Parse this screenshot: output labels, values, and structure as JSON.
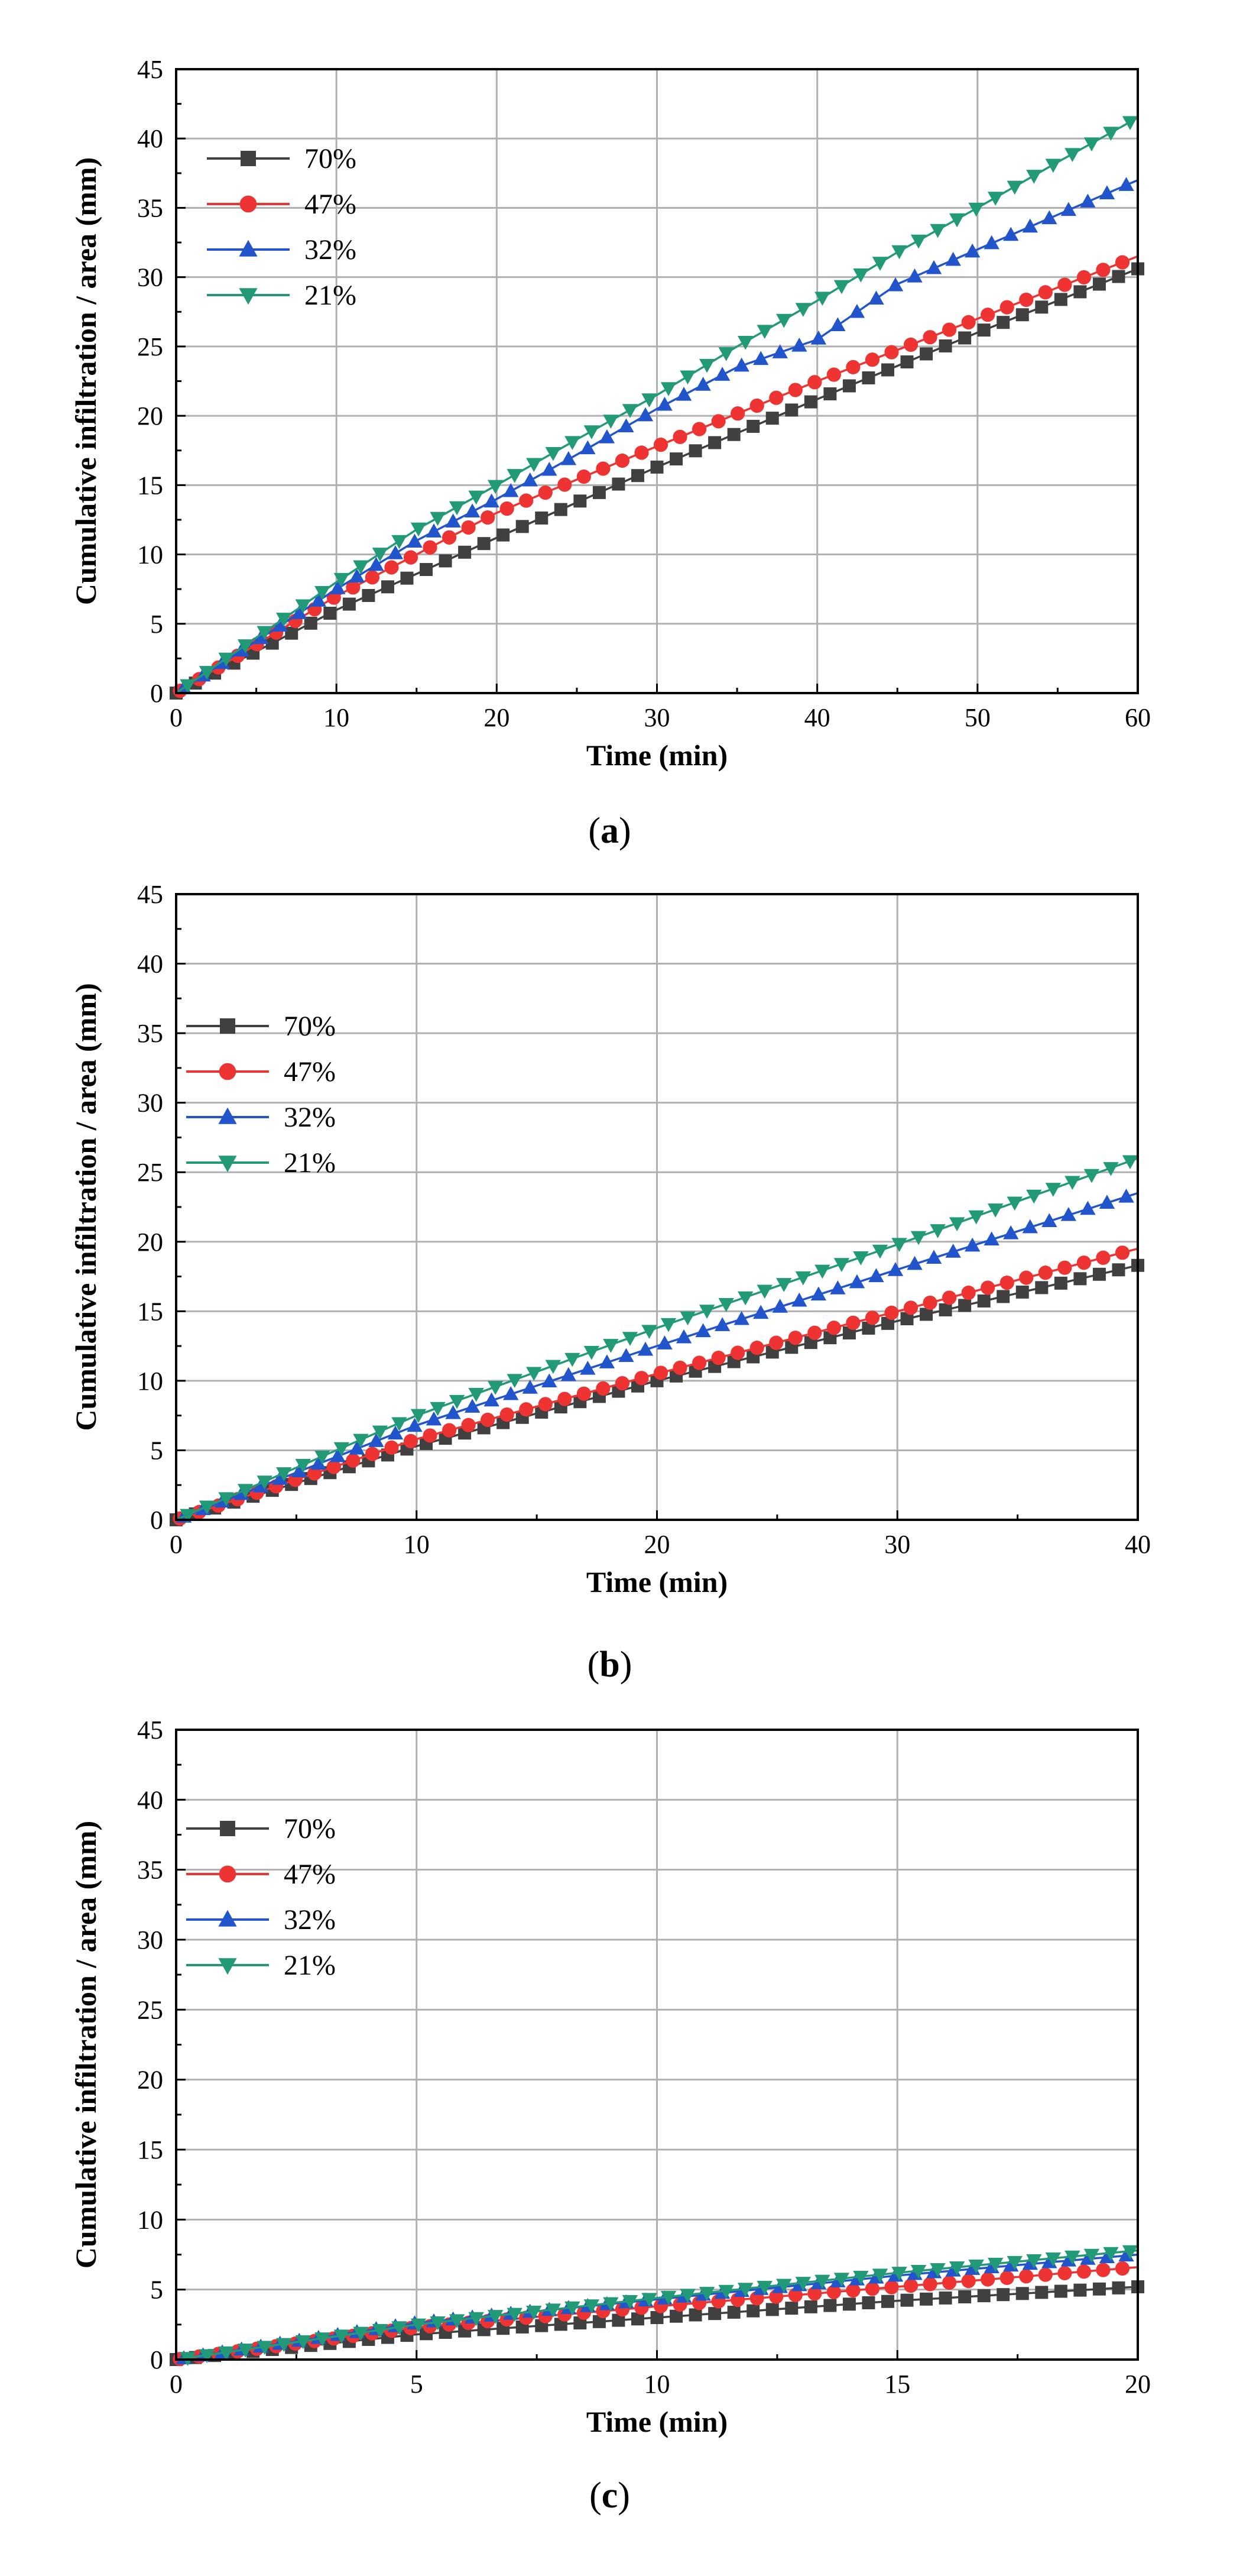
{
  "chart_data": [
    {
      "type": "line",
      "panel_label": "a",
      "caption_open": "(",
      "caption_close": ")",
      "xlabel": "Time (min)",
      "ylabel": "Cumulative infiltration / area (mm)",
      "xlim": [
        0,
        60
      ],
      "ylim": [
        0,
        45
      ],
      "xticks": [
        0,
        10,
        20,
        30,
        40,
        50,
        60
      ],
      "yticks": [
        0,
        5,
        10,
        15,
        20,
        25,
        30,
        35,
        40,
        45
      ],
      "grid": true,
      "legend_position": "top-left",
      "series": [
        {
          "name": "70%",
          "color": "#404040",
          "marker": "square",
          "x": [
            0,
            10,
            20,
            30,
            40,
            50,
            60
          ],
          "values": [
            0,
            6.0,
            11.2,
            16.3,
            21.2,
            26.0,
            30.6
          ]
        },
        {
          "name": "47%",
          "color": "#ee3333",
          "marker": "circle",
          "x": [
            0,
            10,
            20,
            30,
            40,
            50,
            60
          ],
          "values": [
            0,
            7.0,
            13.0,
            17.8,
            22.5,
            27.0,
            31.5
          ]
        },
        {
          "name": "32%",
          "color": "#2255cc",
          "marker": "triangle-up",
          "x": [
            0,
            10,
            15,
            20,
            25,
            30,
            35,
            40,
            45,
            50,
            55,
            60
          ],
          "values": [
            0,
            7.5,
            11.0,
            14.0,
            17.2,
            20.5,
            23.5,
            25.5,
            29.5,
            32.0,
            34.5,
            37.0
          ]
        },
        {
          "name": "21%",
          "color": "#229977",
          "marker": "triangle-down",
          "x": [
            0,
            10,
            15,
            20,
            25,
            30,
            35,
            40,
            45,
            50,
            55,
            60
          ],
          "values": [
            0,
            8.0,
            11.8,
            15.0,
            18.3,
            21.5,
            25.0,
            28.3,
            31.8,
            35.0,
            38.3,
            41.5
          ]
        }
      ]
    },
    {
      "type": "line",
      "panel_label": "b",
      "caption_open": "(",
      "caption_close": ")",
      "xlabel": "Time (min)",
      "ylabel": "Cumulative infiltration / area (mm)",
      "xlim": [
        0,
        40
      ],
      "ylim": [
        0,
        45
      ],
      "xticks": [
        0,
        10,
        20,
        30,
        40
      ],
      "yticks": [
        0,
        5,
        10,
        15,
        20,
        25,
        30,
        35,
        40,
        45
      ],
      "grid": true,
      "legend_position": "top-left",
      "series": [
        {
          "name": "70%",
          "color": "#404040",
          "marker": "square",
          "x": [
            0,
            10,
            20,
            30,
            40
          ],
          "values": [
            0,
            5.3,
            10.0,
            14.3,
            18.3
          ]
        },
        {
          "name": "47%",
          "color": "#ee3333",
          "marker": "circle",
          "x": [
            0,
            10,
            20,
            30,
            40
          ],
          "values": [
            0,
            5.8,
            10.5,
            15.0,
            19.5
          ]
        },
        {
          "name": "32%",
          "color": "#2255cc",
          "marker": "triangle-up",
          "x": [
            0,
            10,
            20,
            30,
            40
          ],
          "values": [
            0,
            6.8,
            12.5,
            18.0,
            23.5
          ]
        },
        {
          "name": "21%",
          "color": "#229977",
          "marker": "triangle-down",
          "x": [
            0,
            10,
            20,
            30,
            40
          ],
          "values": [
            0,
            7.5,
            13.8,
            19.8,
            26.0
          ]
        }
      ]
    },
    {
      "type": "line",
      "panel_label": "c",
      "caption_open": "(",
      "caption_close": ")",
      "xlabel": "Time (min)",
      "ylabel": "Cumulative infiltration / area (mm)",
      "xlim": [
        0,
        20
      ],
      "ylim": [
        0,
        45
      ],
      "xticks": [
        0,
        5,
        10,
        15,
        20
      ],
      "yticks": [
        0,
        5,
        10,
        15,
        20,
        25,
        30,
        35,
        40,
        45
      ],
      "grid": true,
      "legend_position": "top-left",
      "series": [
        {
          "name": "70%",
          "color": "#404040",
          "marker": "square",
          "x": [
            0,
            5,
            10,
            15,
            20
          ],
          "values": [
            0,
            1.8,
            3.0,
            4.2,
            5.2
          ]
        },
        {
          "name": "47%",
          "color": "#ee3333",
          "marker": "circle",
          "x": [
            0,
            5,
            10,
            15,
            20
          ],
          "values": [
            0,
            2.3,
            3.8,
            5.2,
            6.6
          ]
        },
        {
          "name": "32%",
          "color": "#2255cc",
          "marker": "triangle-up",
          "x": [
            0,
            5,
            10,
            15,
            20
          ],
          "values": [
            0,
            2.6,
            4.3,
            6.0,
            7.5
          ]
        },
        {
          "name": "21%",
          "color": "#229977",
          "marker": "triangle-down",
          "x": [
            0,
            5,
            10,
            15,
            20
          ],
          "values": [
            0,
            2.5,
            4.4,
            6.2,
            7.8
          ]
        }
      ]
    }
  ]
}
